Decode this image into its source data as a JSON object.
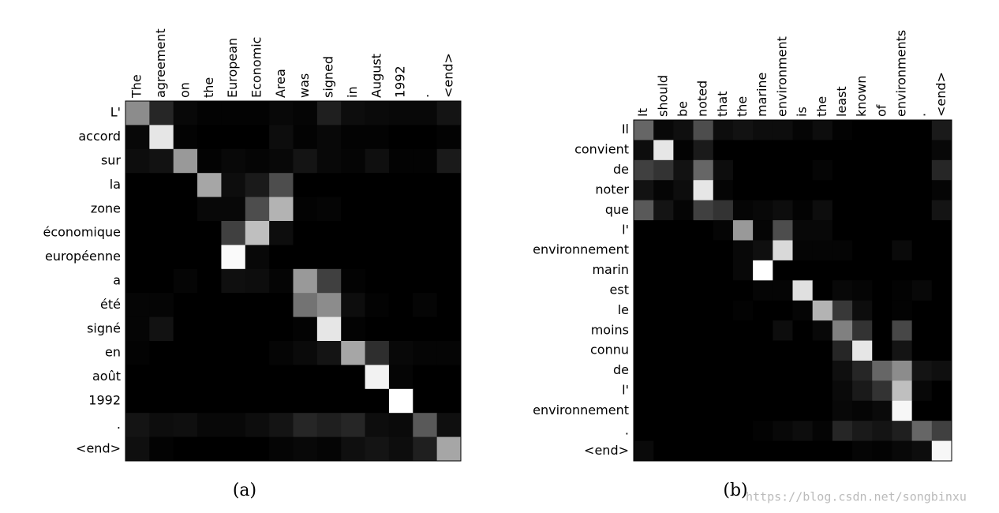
{
  "chart_data": [
    {
      "type": "heatmap",
      "caption": "(a)",
      "x_labels": [
        "The",
        "agreement",
        "on",
        "the",
        "European",
        "Economic",
        "Area",
        "was",
        "signed",
        "in",
        "August",
        "1992",
        ".",
        "<end>"
      ],
      "y_labels": [
        "L'",
        "accord",
        "sur",
        "la",
        "zone",
        "économique",
        "européenne",
        "a",
        "été",
        "signé",
        "en",
        "août",
        "1992",
        ".",
        "<end>"
      ],
      "values": [
        [
          0.55,
          0.15,
          0.03,
          0.01,
          0.01,
          0.01,
          0.03,
          0.02,
          0.12,
          0.05,
          0.04,
          0.03,
          0.03,
          0.08
        ],
        [
          0.03,
          0.9,
          0.01,
          0,
          0,
          0,
          0.05,
          0.01,
          0.03,
          0.01,
          0.01,
          0,
          0,
          0.01
        ],
        [
          0.05,
          0.07,
          0.6,
          0.01,
          0.03,
          0.02,
          0.03,
          0.08,
          0.03,
          0.02,
          0.06,
          0.01,
          0.01,
          0.1
        ],
        [
          0,
          0,
          0,
          0.65,
          0.05,
          0.1,
          0.3,
          0,
          0,
          0,
          0,
          0,
          0,
          0
        ],
        [
          0,
          0,
          0,
          0.03,
          0.03,
          0.3,
          0.7,
          0.01,
          0.02,
          0,
          0,
          0,
          0,
          0
        ],
        [
          0,
          0,
          0,
          0,
          0.25,
          0.75,
          0.05,
          0,
          0,
          0,
          0,
          0,
          0,
          0
        ],
        [
          0,
          0,
          0,
          0,
          0.98,
          0.03,
          0,
          0,
          0,
          0,
          0,
          0,
          0,
          0
        ],
        [
          0,
          0,
          0.02,
          0,
          0.06,
          0.05,
          0.02,
          0.6,
          0.25,
          0.01,
          0,
          0,
          0,
          0
        ],
        [
          0.02,
          0.02,
          0,
          0,
          0,
          0,
          0,
          0.45,
          0.55,
          0.05,
          0.01,
          0,
          0.02,
          0
        ],
        [
          0.02,
          0.07,
          0,
          0,
          0,
          0,
          0,
          0.01,
          0.9,
          0.01,
          0,
          0,
          0,
          0
        ],
        [
          0.01,
          0,
          0,
          0,
          0,
          0,
          0.02,
          0.04,
          0.08,
          0.65,
          0.18,
          0.03,
          0.02,
          0.02
        ],
        [
          0,
          0,
          0,
          0,
          0,
          0,
          0,
          0,
          0,
          0,
          0.95,
          0.02,
          0,
          0
        ],
        [
          0,
          0,
          0,
          0,
          0,
          0,
          0,
          0,
          0,
          0,
          0,
          1.0,
          0,
          0
        ],
        [
          0.08,
          0.05,
          0.06,
          0.03,
          0.03,
          0.05,
          0.08,
          0.15,
          0.12,
          0.15,
          0.05,
          0.04,
          0.35,
          0.06
        ],
        [
          0.06,
          0.01,
          0,
          0,
          0,
          0,
          0.02,
          0.03,
          0.02,
          0.06,
          0.08,
          0.05,
          0.12,
          0.65
        ]
      ]
    },
    {
      "type": "heatmap",
      "caption": "(b)",
      "x_labels": [
        "It",
        "should",
        "be",
        "noted",
        "that",
        "the",
        "marine",
        "environment",
        "is",
        "the",
        "least",
        "known",
        "of",
        "environments",
        ".",
        "<end>"
      ],
      "y_labels": [
        "Il",
        "convient",
        "de",
        "noter",
        "que",
        "l'",
        "environnement",
        "marin",
        "est",
        "le",
        "moins",
        "connu",
        "de",
        "l'",
        "environnement",
        ".",
        "<end>"
      ],
      "values": [
        [
          0.4,
          0.03,
          0.06,
          0.3,
          0.05,
          0.07,
          0.05,
          0.05,
          0.02,
          0.05,
          0.01,
          0,
          0,
          0,
          0,
          0.1
        ],
        [
          0.05,
          0.9,
          0.01,
          0.1,
          0,
          0,
          0,
          0,
          0,
          0,
          0,
          0,
          0,
          0,
          0,
          0.03
        ],
        [
          0.25,
          0.2,
          0.07,
          0.4,
          0.05,
          0,
          0,
          0,
          0,
          0.02,
          0,
          0,
          0,
          0,
          0,
          0.15
        ],
        [
          0.07,
          0.02,
          0.05,
          0.9,
          0.02,
          0,
          0,
          0,
          0,
          0,
          0,
          0,
          0,
          0,
          0,
          0.02
        ],
        [
          0.35,
          0.08,
          0.02,
          0.25,
          0.2,
          0.02,
          0.03,
          0.05,
          0.01,
          0.05,
          0,
          0,
          0,
          0,
          0,
          0.08
        ],
        [
          0,
          0,
          0,
          0,
          0.02,
          0.6,
          0.02,
          0.3,
          0.03,
          0.03,
          0,
          0,
          0,
          0,
          0,
          0
        ],
        [
          0,
          0,
          0,
          0,
          0,
          0.03,
          0.06,
          0.85,
          0.02,
          0.02,
          0.02,
          0,
          0,
          0.04,
          0,
          0
        ],
        [
          0,
          0,
          0,
          0,
          0,
          0.03,
          1.0,
          0,
          0,
          0,
          0,
          0,
          0,
          0,
          0,
          0
        ],
        [
          0,
          0,
          0,
          0,
          0,
          0,
          0.02,
          0.02,
          0.88,
          0,
          0.03,
          0.02,
          0,
          0.01,
          0.03,
          0
        ],
        [
          0,
          0,
          0,
          0,
          0,
          0.01,
          0,
          0,
          0.02,
          0.7,
          0.22,
          0.05,
          0,
          0.01,
          0,
          0
        ],
        [
          0,
          0,
          0,
          0,
          0,
          0,
          0,
          0.05,
          0,
          0.03,
          0.5,
          0.2,
          0,
          0.28,
          0,
          0
        ],
        [
          0,
          0,
          0,
          0,
          0,
          0,
          0,
          0,
          0,
          0,
          0.15,
          0.9,
          0,
          0.08,
          0,
          0
        ],
        [
          0,
          0,
          0,
          0,
          0,
          0,
          0,
          0,
          0,
          0,
          0.06,
          0.15,
          0.4,
          0.55,
          0.08,
          0.06
        ],
        [
          0,
          0,
          0,
          0,
          0,
          0,
          0,
          0,
          0,
          0,
          0.04,
          0.1,
          0.2,
          0.75,
          0.03,
          0
        ],
        [
          0,
          0,
          0,
          0,
          0,
          0,
          0,
          0,
          0,
          0,
          0.03,
          0.02,
          0.04,
          0.97,
          0,
          0
        ],
        [
          0,
          0,
          0,
          0,
          0,
          0,
          0.01,
          0.03,
          0.05,
          0.02,
          0.15,
          0.1,
          0.08,
          0.12,
          0.4,
          0.25
        ],
        [
          0.04,
          0,
          0,
          0,
          0,
          0,
          0,
          0,
          0,
          0,
          0,
          0.02,
          0.01,
          0.03,
          0.05,
          0.97
        ]
      ]
    }
  ],
  "watermark": "https://blog.csdn.net/songbinxu"
}
